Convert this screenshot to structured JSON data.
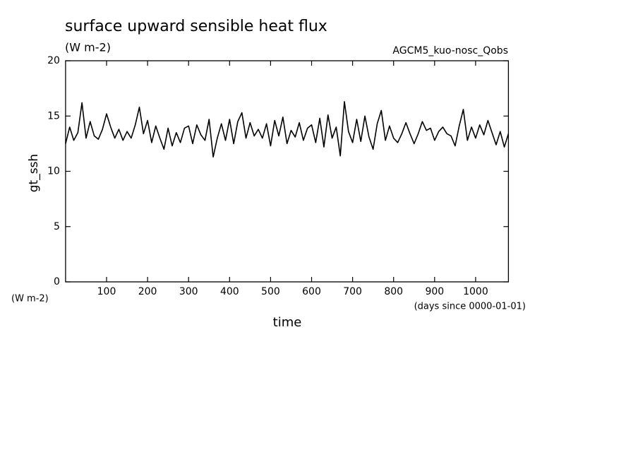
{
  "chart_data": {
    "type": "line",
    "title": "surface upward sensible heat flux",
    "subtitle": "(W m-2)",
    "experiment": "AGCM5_kuo-nosc_Qobs",
    "y_label": "gt_ssh",
    "y_unit_label": "(W m-2)",
    "x_unit_label": "(days since 0000-01-01)",
    "x_label": "time",
    "x": [
      0,
      10,
      20,
      30,
      40,
      50,
      60,
      70,
      80,
      90,
      100,
      110,
      120,
      130,
      140,
      150,
      160,
      170,
      180,
      190,
      200,
      210,
      220,
      230,
      240,
      250,
      260,
      270,
      280,
      290,
      300,
      310,
      320,
      330,
      340,
      350,
      360,
      370,
      380,
      390,
      400,
      410,
      420,
      430,
      440,
      450,
      460,
      470,
      480,
      490,
      500,
      510,
      520,
      530,
      540,
      550,
      560,
      570,
      580,
      590,
      600,
      610,
      620,
      630,
      640,
      650,
      660,
      670,
      680,
      690,
      700,
      710,
      720,
      730,
      740,
      750,
      760,
      770,
      780,
      790,
      800,
      810,
      820,
      830,
      840,
      850,
      860,
      870,
      880,
      890,
      900,
      910,
      920,
      930,
      940,
      950,
      960,
      970,
      980,
      990,
      1000,
      1010,
      1020,
      1030,
      1040,
      1050,
      1060,
      1070,
      1080
    ],
    "series": [
      {
        "name": "gt_ssh",
        "color": "#000000",
        "values": [
          12.5,
          14.0,
          12.8,
          13.5,
          16.2,
          13.0,
          14.5,
          13.2,
          12.9,
          13.8,
          15.2,
          14.0,
          13.0,
          13.8,
          12.8,
          13.6,
          13.0,
          14.2,
          15.8,
          13.4,
          14.6,
          12.6,
          14.1,
          13.0,
          12.0,
          13.9,
          12.3,
          13.5,
          12.6,
          13.9,
          14.1,
          12.5,
          14.2,
          13.3,
          12.8,
          14.7,
          11.3,
          13.0,
          14.3,
          12.8,
          14.7,
          12.5,
          14.5,
          15.3,
          13.0,
          14.4,
          13.2,
          13.8,
          13.0,
          14.3,
          12.3,
          14.6,
          13.2,
          14.9,
          12.5,
          13.7,
          13.1,
          14.4,
          12.8,
          13.9,
          14.2,
          12.6,
          14.8,
          12.2,
          15.1,
          13.0,
          14.0,
          11.4,
          16.3,
          13.6,
          12.6,
          14.7,
          12.7,
          15.0,
          13.1,
          12.0,
          14.3,
          15.5,
          12.8,
          14.1,
          13.0,
          12.6,
          13.4,
          14.4,
          13.4,
          12.5,
          13.4,
          14.5,
          13.7,
          13.9,
          12.8,
          13.6,
          14.0,
          13.4,
          13.2,
          12.3,
          14.1,
          15.6,
          12.8,
          14.0,
          13.0,
          14.2,
          13.3,
          14.6,
          13.5,
          12.4,
          13.6,
          12.2,
          13.4
        ]
      }
    ],
    "xlim": [
      0,
      1080
    ],
    "xticks": [
      100,
      200,
      300,
      400,
      500,
      600,
      700,
      800,
      900,
      1000
    ],
    "ylim": [
      0,
      20
    ],
    "yticks": [
      0,
      5,
      10,
      15,
      20
    ],
    "grid": false
  }
}
